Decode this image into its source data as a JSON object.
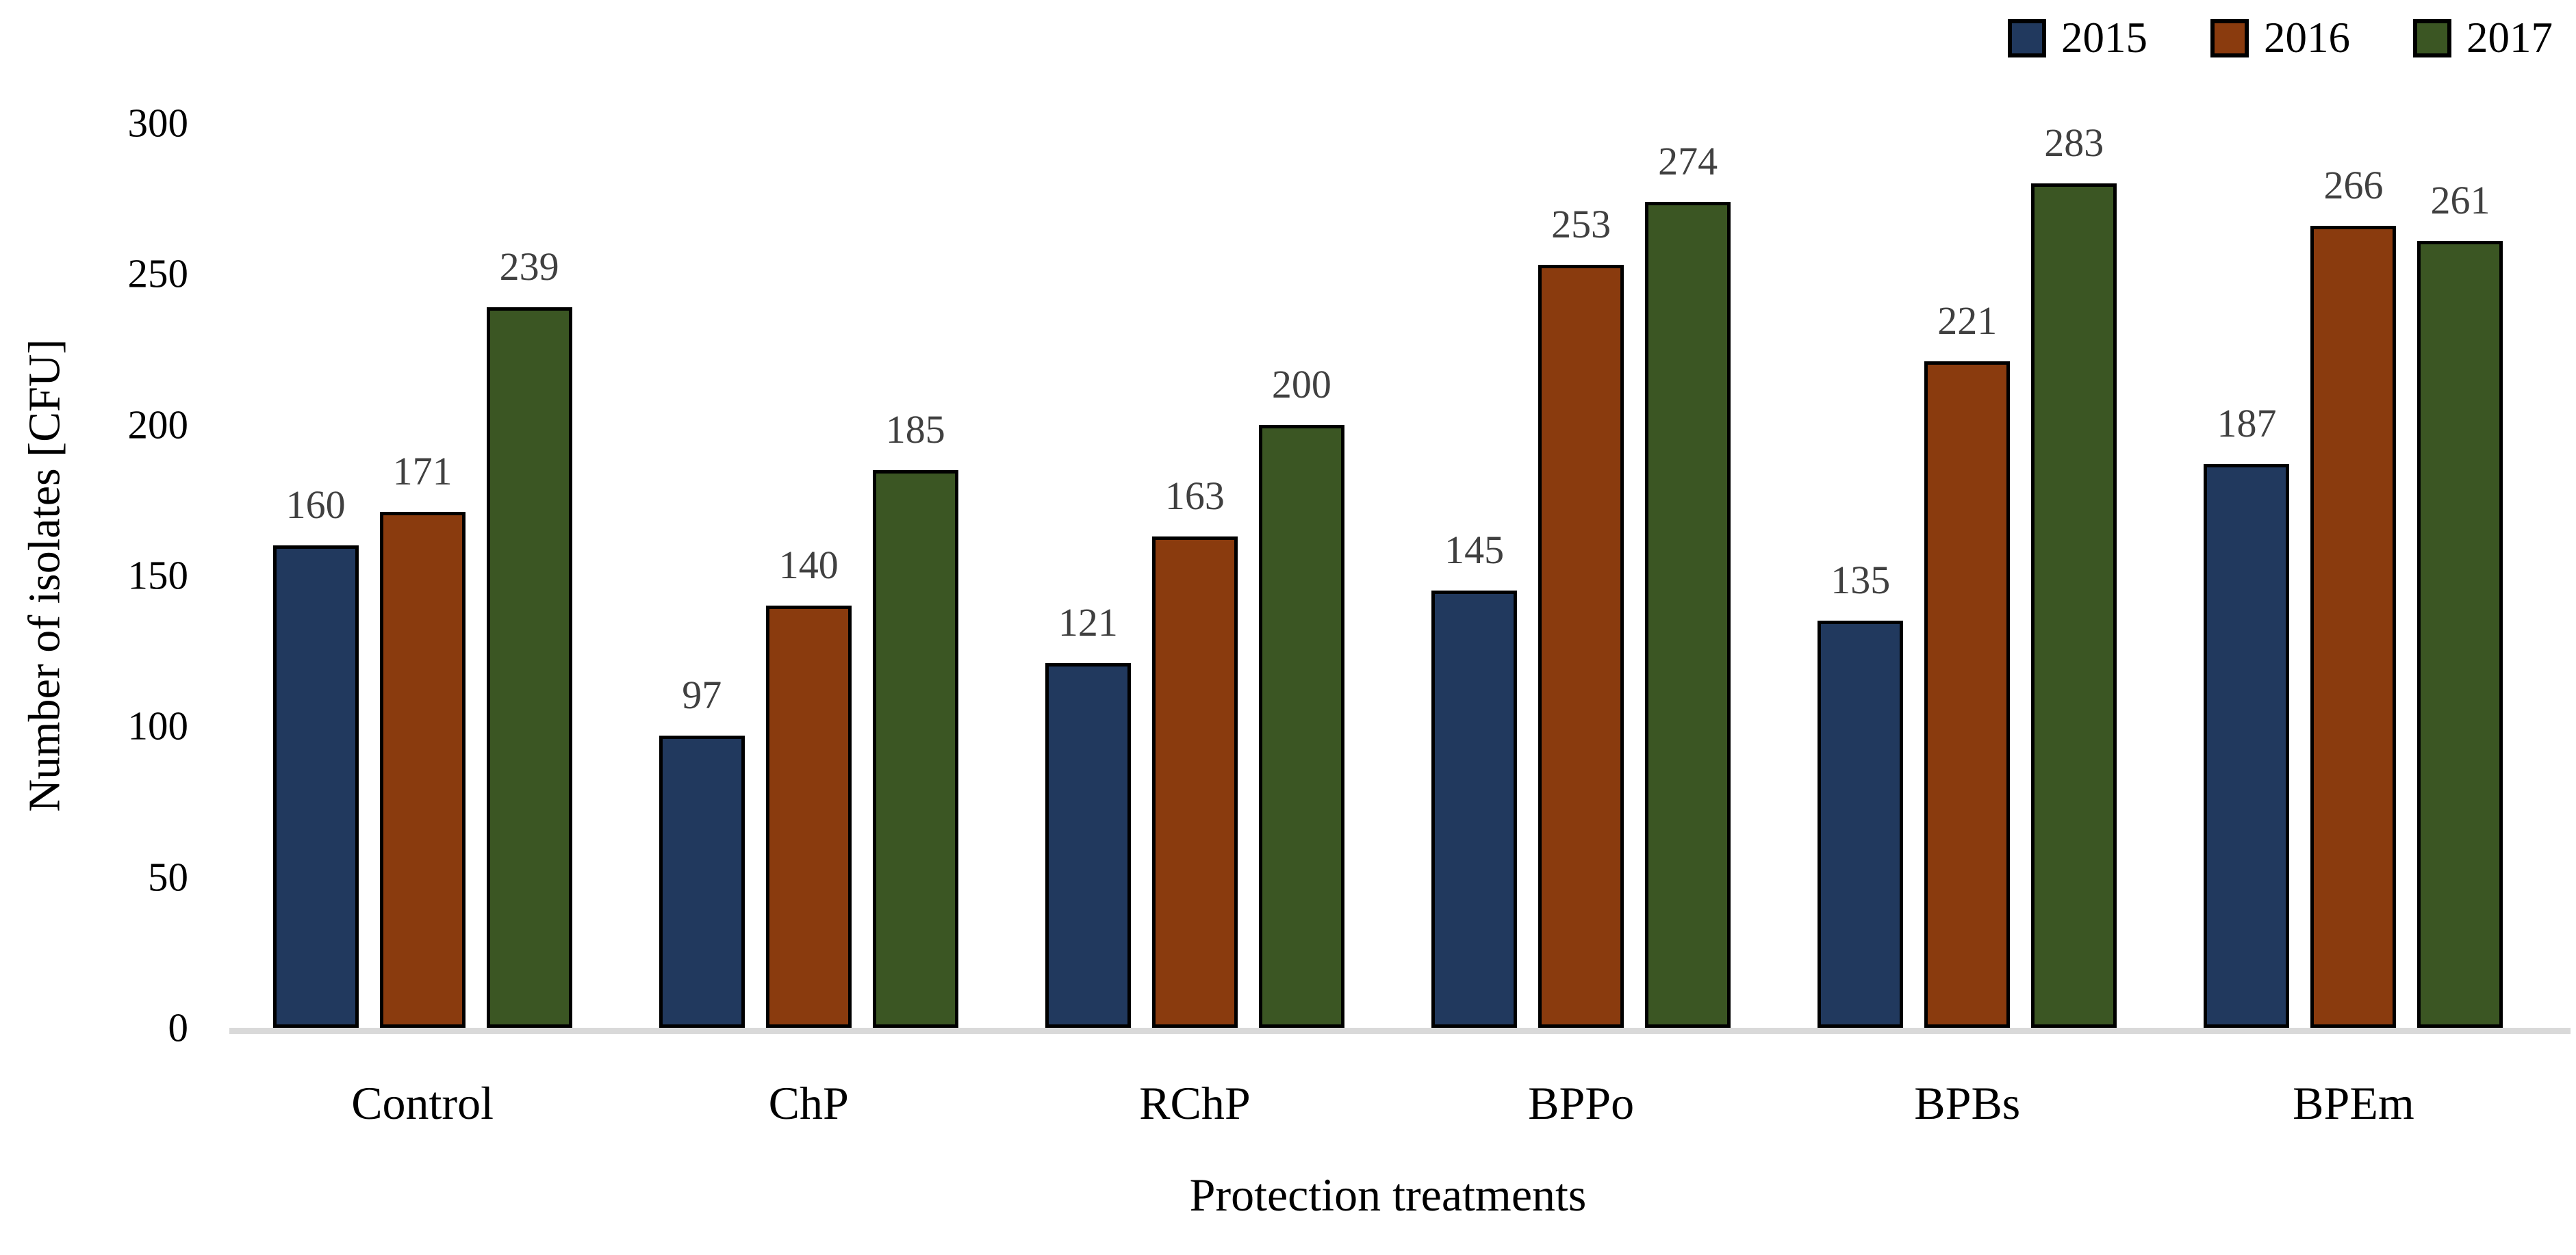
{
  "chart_data": {
    "type": "bar",
    "title": "",
    "xlabel": "Protection treatments",
    "ylabel": "Number of isolates [CFU]",
    "categories": [
      "Control",
      "ChP",
      "RChP",
      "BPPo",
      "BPBs",
      "BPEm"
    ],
    "series": [
      {
        "name": "2015",
        "color": "#21395E",
        "values": [
          160,
          97,
          121,
          145,
          135,
          187
        ]
      },
      {
        "name": "2016",
        "color": "#8A3B0E",
        "values": [
          171,
          140,
          163,
          253,
          221,
          266
        ]
      },
      {
        "name": "2017",
        "color": "#3B5623",
        "values": [
          239,
          185,
          200,
          274,
          283,
          261
        ]
      }
    ],
    "ylim": [
      0,
      300
    ],
    "yticks": [
      0,
      50,
      100,
      150,
      200,
      250,
      300
    ],
    "grid": false,
    "legend_position": "top-right",
    "bar_outline_color": "#000000",
    "value_label_color": "#404040",
    "axis_line_color": "#D9D9D9"
  }
}
